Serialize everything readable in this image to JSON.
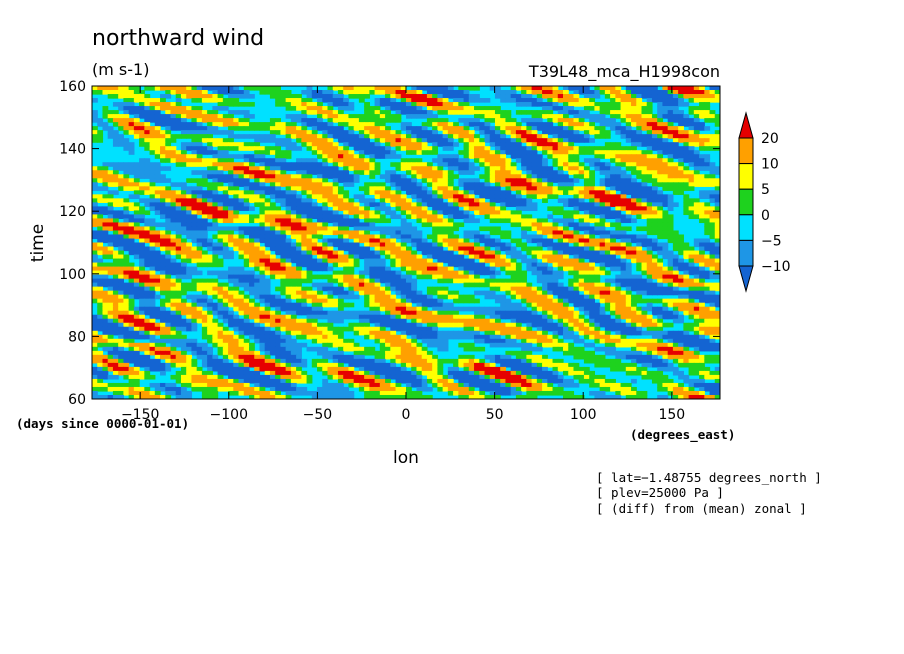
{
  "chart_data": {
    "type": "heatmap",
    "title": "northward wind",
    "units": "(m s-1)",
    "run_label": "T39L48_mca_H1998con",
    "xlabel": "lon",
    "xunits": "(degrees_east)",
    "ylabel": "time",
    "yunits": "(days since 0000-01-01)",
    "xlim": [
      -177.1875,
      177.1875
    ],
    "ylim": [
      60,
      160
    ],
    "x_ticks": [
      -150,
      -100,
      -50,
      0,
      50,
      100,
      150
    ],
    "x_tick_labels": [
      "−150",
      "−100",
      "−50",
      "0",
      "50",
      "100",
      "150"
    ],
    "y_ticks": [
      60,
      80,
      100,
      120,
      140,
      160
    ],
    "y_tick_labels": [
      "60",
      "80",
      "100",
      "120",
      "140",
      "160"
    ],
    "colorbar": {
      "levels": [
        -10,
        -5,
        0,
        5,
        10,
        20
      ],
      "level_labels": [
        "−10",
        "−5",
        "0",
        "5",
        "10",
        "20"
      ],
      "colors": [
        "#1464d2",
        "#1e96e6",
        "#00e1ff",
        "#1ed21e",
        "#ffff00",
        "#ffa000",
        "#e60000"
      ],
      "extend": "both"
    },
    "annotations": [
      "[ lat=−1.48755 degrees_north ]",
      "[ plev=25000 Pa ]",
      "[ (diff) from (mean) zonal ]"
    ]
  }
}
